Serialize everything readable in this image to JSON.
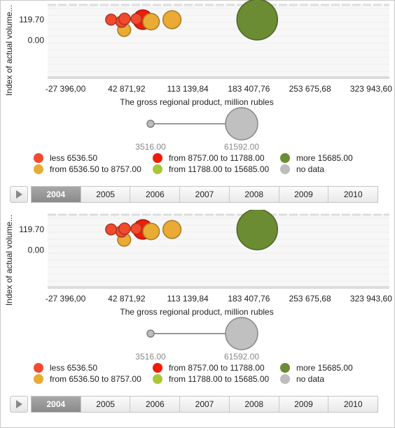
{
  "chart_data": {
    "type": "scatter",
    "subtype": "bubble",
    "xlabel": "The gross regional product, million rubles",
    "ylabel": "Index of actual volume...",
    "x_ticks": [
      "-27 396,00",
      "42 871,92",
      "113 139,84",
      "183 407,76",
      "253 675,68",
      "323 943,60"
    ],
    "x_tick_values": [
      -27396,
      42871.92,
      113139.84,
      183407.76,
      253675.68,
      323943.6
    ],
    "xlim": [
      -48000,
      345000
    ],
    "y_ticks": [
      "119.70",
      "0.00"
    ],
    "y_tick_values": [
      119.7,
      0
    ],
    "ylim": [
      -215,
      210
    ],
    "size_legend": {
      "min_label": "3516.00",
      "max_label": "61592.00",
      "min_value": 3516,
      "max_value": 61592
    },
    "color_legend": [
      {
        "label": "less 6536.50",
        "color": "#f24a2e"
      },
      {
        "label": "from 8757.00 to 11788.00",
        "color": "#ee1d08"
      },
      {
        "label": "more 15685.00",
        "color": "#6b8c33"
      },
      {
        "label": "from 6536.50 to 8757.00",
        "color": "#e9ab33"
      },
      {
        "label": "from 11788.00 to 15685.00",
        "color": "#a9c639"
      },
      {
        "label": "no data",
        "color": "#bdbdbd"
      }
    ],
    "points": [
      {
        "x": 193000,
        "y": 119.7,
        "size": 61592,
        "color": "#6b8c33"
      },
      {
        "x": 61500,
        "y": 119.7,
        "size": 11600,
        "color": "#ee1d08"
      },
      {
        "x": 95000,
        "y": 119.7,
        "size": 9800,
        "color": "#e9ab33"
      },
      {
        "x": 71000,
        "y": 108,
        "size": 8100,
        "color": "#e9ab33"
      },
      {
        "x": 40000,
        "y": 60,
        "size": 5400,
        "color": "#e9ab33"
      },
      {
        "x": 25000,
        "y": 119.7,
        "size": 4300,
        "color": "#f24a2e"
      },
      {
        "x": 37000,
        "y": 108,
        "size": 4500,
        "color": "#f24a2e"
      },
      {
        "x": 40500,
        "y": 124,
        "size": 4500,
        "color": "#f24a2e"
      },
      {
        "x": 54000,
        "y": 124,
        "size": 4200,
        "color": "#f24a2e"
      }
    ]
  },
  "timeline": {
    "years": [
      "2004",
      "2005",
      "2006",
      "2007",
      "2008",
      "2009",
      "2010"
    ],
    "active": "2004"
  }
}
